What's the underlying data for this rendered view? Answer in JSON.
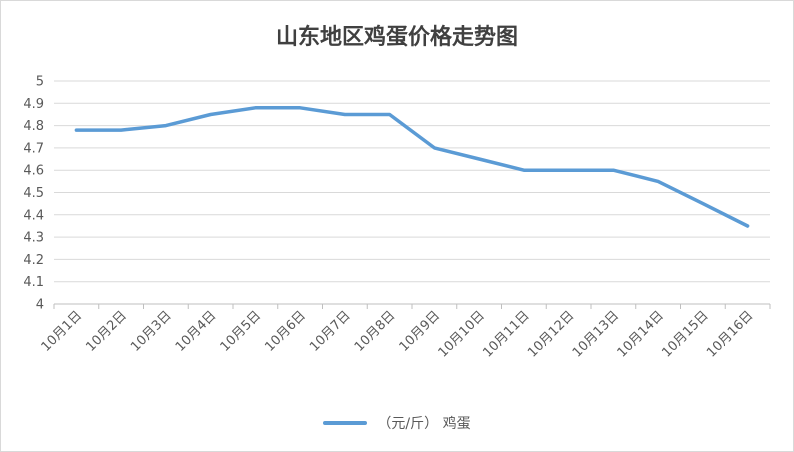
{
  "chart_data": {
    "type": "line",
    "title": "山东地区鸡蛋价格走势图",
    "categories": [
      "10月1日",
      "10月2日",
      "10月3日",
      "10月4日",
      "10月5日",
      "10月6日",
      "10月7日",
      "10月8日",
      "10月9日",
      "10月10日",
      "10月11日",
      "10月12日",
      "10月13日",
      "10月14日",
      "10月15日",
      "10月16日"
    ],
    "series": [
      {
        "name": "（元/斤） 鸡蛋",
        "color": "#5b9bd5",
        "values": [
          4.78,
          4.78,
          4.8,
          4.85,
          4.88,
          4.88,
          4.85,
          4.85,
          4.7,
          4.65,
          4.6,
          4.6,
          4.6,
          4.55,
          4.45,
          4.35
        ]
      }
    ],
    "ylim": [
      4,
      5
    ],
    "yticks": [
      "4",
      "4.1",
      "4.2",
      "4.3",
      "4.4",
      "4.5",
      "4.6",
      "4.7",
      "4.8",
      "4.9",
      "5"
    ],
    "grid": true,
    "legend_position": "bottom"
  }
}
